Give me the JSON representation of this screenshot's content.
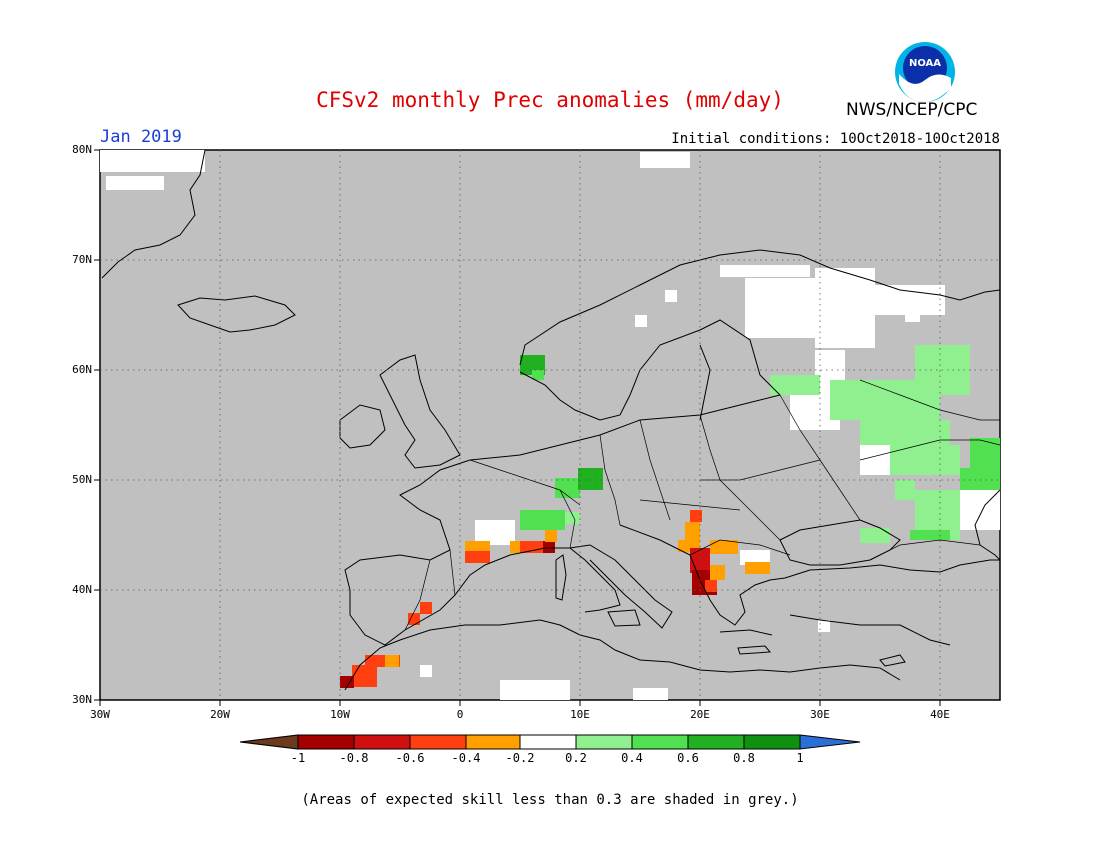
{
  "header": {
    "title": "CFSv2 monthly Prec anomalies (mm/day)",
    "month": "Jan 2019",
    "initial_conditions": "Initial conditions: 10Oct2018-10Oct2018",
    "agency": "NWS/NCEP/CPC",
    "logo_text": "NOAA"
  },
  "map": {
    "projection": "cylindrical lat-lon",
    "lon_range": [
      -30,
      45
    ],
    "lat_range": [
      30,
      80
    ],
    "background_color": "#c0c0c0",
    "grid": "dotted",
    "lat_labels": [
      "80N",
      "70N",
      "60N",
      "50N",
      "40N",
      "30N"
    ],
    "lon_labels": [
      "30W",
      "20W",
      "10W",
      "0",
      "10E",
      "20E",
      "30E",
      "40E"
    ]
  },
  "anomaly_regions": [
    {
      "region": "Western Norway",
      "level": 0.6
    },
    {
      "region": "Southern Finland / Karelia",
      "level": 0.3
    },
    {
      "region": "Western Russia",
      "level": 0.3
    },
    {
      "region": "Central Russia east",
      "level": 0.5
    },
    {
      "region": "Southern Russia",
      "level": 0.4
    },
    {
      "region": "Southern Germany",
      "level": 0.5
    },
    {
      "region": "Alps",
      "level": 0.4
    },
    {
      "region": "Southern France",
      "level": -0.6
    },
    {
      "region": "Pyrenees",
      "level": -0.5
    },
    {
      "region": "Adriatic / Albania",
      "level": -0.8
    },
    {
      "region": "Balkans",
      "level": -0.4
    },
    {
      "region": "Northern Greece",
      "level": -0.3
    },
    {
      "region": "Southern Spain",
      "level": -0.6
    },
    {
      "region": "Morocco",
      "level": -0.7
    }
  ],
  "colorbar": {
    "labels": [
      "-1",
      "-0.8",
      "-0.6",
      "-0.4",
      "-0.2",
      "0.2",
      "0.4",
      "0.6",
      "0.8",
      "1"
    ],
    "colors": [
      "#6b3a1f",
      "#a50000",
      "#d01010",
      "#ff3f10",
      "#ffa000",
      "#ffffff",
      "#90f090",
      "#50e050",
      "#20b020",
      "#109010",
      "#2a6fd6"
    ]
  },
  "footnote": "(Areas of expected skill less than 0.3 are shaded in grey.)"
}
